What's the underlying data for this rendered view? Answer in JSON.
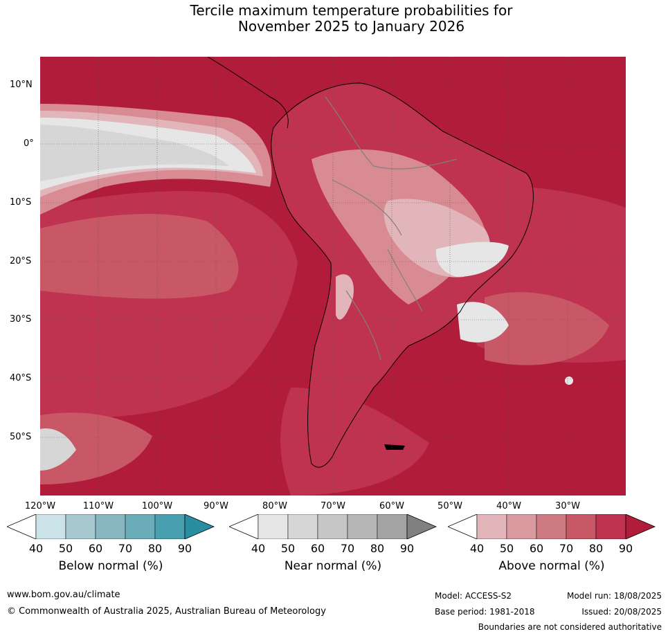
{
  "title": {
    "line1": "Tercile maximum temperature probabilities for",
    "line2": "November 2025 to January 2026"
  },
  "map": {
    "lat_labels": [
      "10°N",
      "0°",
      "10°S",
      "20°S",
      "30°S",
      "40°S",
      "50°S"
    ],
    "lon_labels": [
      "120°W",
      "110°W",
      "100°W",
      "90°W",
      "80°W",
      "70°W",
      "60°W",
      "50°W",
      "40°W",
      "30°W"
    ],
    "colors": {
      "above_90": "#b01c3a",
      "above_80": "#bf3350",
      "above_70": "#c95866",
      "above_60": "#d98b93",
      "above_50": "#e2b5ba",
      "near_40": "#e6e6e6",
      "near_50": "#d6d6d6",
      "coast": "#000000",
      "borders": "#808080"
    }
  },
  "colorbars": [
    {
      "title": "Below normal (%)",
      "ticks": [
        "40",
        "50",
        "60",
        "70",
        "80",
        "90"
      ],
      "colors": [
        "#cbe2e8",
        "#a7c9cf",
        "#88b7c2",
        "#6aacb8",
        "#489fb0",
        "#2a8ea3"
      ]
    },
    {
      "title": "Near normal (%)",
      "ticks": [
        "40",
        "50",
        "60",
        "70",
        "80",
        "90"
      ],
      "colors": [
        "#e6e6e6",
        "#d6d6d6",
        "#c6c6c6",
        "#b6b6b6",
        "#a3a3a3",
        "#808080"
      ]
    },
    {
      "title": "Above normal (%)",
      "ticks": [
        "40",
        "50",
        "60",
        "70",
        "80",
        "90"
      ],
      "colors": [
        "#e2b5ba",
        "#d99aa0",
        "#cd7a82",
        "#c95866",
        "#bf3350",
        "#b01c3a"
      ]
    }
  ],
  "footer": {
    "website": "www.bom.gov.au/climate",
    "copyright": "© Commonwealth of Australia 2025, Australian Bureau of Meteorology",
    "model": "Model: ACCESS-S2",
    "base_period": "Base period: 1981-2018",
    "model_run": "Model run: 18/08/2025",
    "issued": "Issued: 20/08/2025",
    "boundaries": "Boundaries are not considered authoritative"
  }
}
